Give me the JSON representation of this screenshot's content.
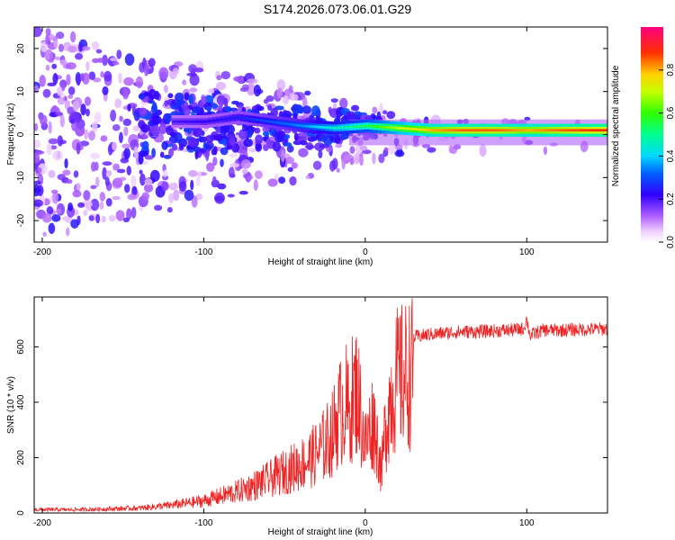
{
  "figure": {
    "title": "S174.2026.073.06.01.G29"
  },
  "chart_data": [
    {
      "type": "heatmap",
      "title": "S174.2026.073.06.01.G29",
      "xlabel": "Height of straight line (km)",
      "ylabel": "Frequency (Hz)",
      "xlim": [
        -205,
        150
      ],
      "ylim": [
        -25,
        25
      ],
      "xticks": [
        -200,
        -100,
        0,
        100
      ],
      "xtick_labels": [
        "-200",
        "-100",
        "0",
        "100"
      ],
      "yticks": [
        -20,
        -10,
        0,
        10,
        20
      ],
      "ytick_labels": [
        "-20",
        "-10",
        "0",
        "10",
        "20"
      ],
      "colorbar": {
        "label": "Normalized spectral amplitude",
        "range": [
          0,
          1
        ],
        "ticks": [
          0,
          0.2,
          0.4,
          0.6,
          0.8
        ],
        "tick_labels": [
          "0.0",
          "0.2",
          "0.4",
          "0.6",
          "0.8"
        ],
        "colormap": "rainbow"
      },
      "ridge": {
        "description_x": [
          -120,
          -100,
          -80,
          -60,
          -40,
          -20,
          0,
          20,
          40,
          60,
          80,
          100,
          120,
          150
        ],
        "frequency_hz": [
          3,
          3,
          4,
          3,
          2,
          1.5,
          2,
          1.5,
          1,
          1,
          1,
          1,
          1,
          1
        ],
        "amplitude": [
          0.2,
          0.22,
          0.25,
          0.3,
          0.35,
          0.45,
          0.55,
          0.7,
          0.8,
          0.85,
          0.85,
          0.8,
          0.85,
          0.9
        ]
      }
    },
    {
      "type": "line",
      "xlabel": "Height of straight line (km)",
      "ylabel": "SNR (10 * v/v)",
      "xlim": [
        -205,
        150
      ],
      "ylim": [
        0,
        780
      ],
      "xticks": [
        -200,
        -100,
        0,
        100
      ],
      "xtick_labels": [
        "-200",
        "-100",
        "0",
        "100"
      ],
      "yticks": [
        0,
        200,
        400,
        600
      ],
      "ytick_labels": [
        "0",
        "200",
        "400",
        "600"
      ],
      "series": [
        {
          "name": "SNR",
          "color": "#ee2222",
          "x": [
            -205,
            -180,
            -160,
            -140,
            -120,
            -100,
            -90,
            -80,
            -70,
            -60,
            -50,
            -40,
            -35,
            -30,
            -25,
            -20,
            -18,
            -15,
            -12,
            -10,
            -8,
            -5,
            -2,
            0,
            2,
            5,
            8,
            10,
            12,
            14,
            16,
            18,
            20,
            25,
            30,
            40,
            50,
            60,
            70,
            80,
            90,
            98,
            100,
            102,
            110,
            120,
            130,
            140,
            150
          ],
          "values": [
            15,
            15,
            18,
            22,
            35,
            55,
            75,
            95,
            120,
            150,
            185,
            220,
            240,
            270,
            310,
            360,
            420,
            460,
            500,
            430,
            520,
            560,
            400,
            300,
            360,
            420,
            300,
            180,
            350,
            460,
            530,
            570,
            600,
            620,
            635,
            645,
            650,
            655,
            655,
            658,
            660,
            665,
            700,
            640,
            660,
            660,
            662,
            663,
            665
          ]
        }
      ]
    }
  ]
}
